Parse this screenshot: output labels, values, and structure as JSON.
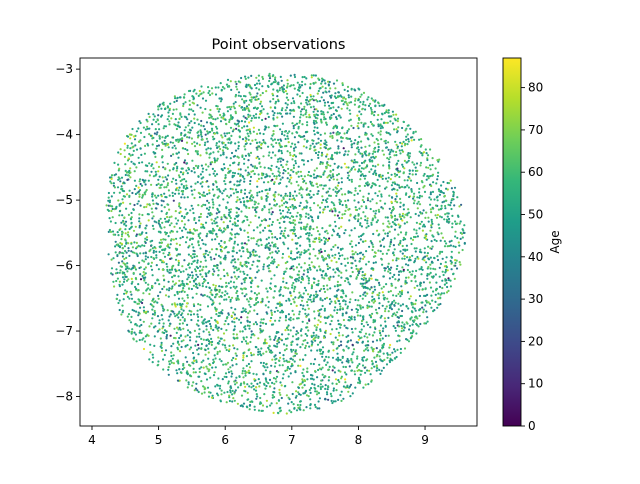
{
  "chart_data": {
    "type": "scatter",
    "title": "Point observations",
    "xlabel": "",
    "ylabel": "",
    "xlim": [
      3.82,
      9.78
    ],
    "ylim": [
      -8.45,
      -2.83
    ],
    "xticks": [
      4,
      5,
      6,
      7,
      8,
      9
    ],
    "yticks": [
      -3,
      -4,
      -5,
      -6,
      -7,
      -8
    ],
    "grid": false,
    "point_count_estimate": 6000,
    "cloud": {
      "center_x": 6.81,
      "center_y": -5.6,
      "radius_x": 2.69,
      "radius_y": 2.6
    },
    "value_distribution": {
      "variable": "Age",
      "mean": 55,
      "std": 10,
      "min": 0,
      "max": 87
    },
    "colorbar": {
      "label": "Age",
      "min": 0,
      "max": 87,
      "ticks": [
        0,
        10,
        20,
        30,
        40,
        50,
        60,
        70,
        80
      ],
      "colormap": "viridis",
      "colormap_stops": [
        "#440154",
        "#482878",
        "#3e4989",
        "#31688e",
        "#26828e",
        "#1f9e89",
        "#35b779",
        "#6ece58",
        "#b5de2b",
        "#fde725"
      ]
    }
  }
}
